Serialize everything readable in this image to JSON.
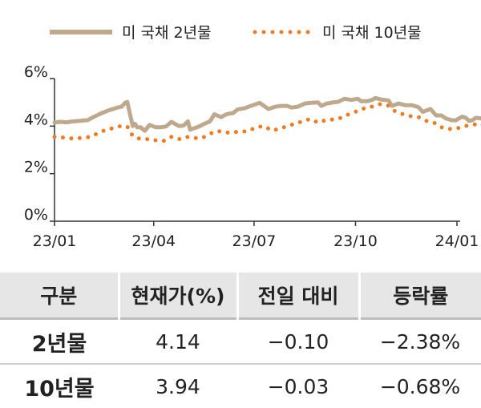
{
  "chart_data": {
    "type": "line",
    "series": [
      {
        "name": "미 국채 2년물",
        "color": "#bfa98d",
        "style": "solid",
        "points": [
          [
            "2023-01-01",
            4.15
          ],
          [
            "2023-01-06",
            4.18
          ],
          [
            "2023-01-12",
            4.16
          ],
          [
            "2023-01-18",
            4.2
          ],
          [
            "2023-01-24",
            4.22
          ],
          [
            "2023-01-31",
            4.25
          ],
          [
            "2023-02-06",
            4.4
          ],
          [
            "2023-02-13",
            4.55
          ],
          [
            "2023-02-20",
            4.68
          ],
          [
            "2023-02-27",
            4.78
          ],
          [
            "2023-03-03",
            4.82
          ],
          [
            "2023-03-06",
            4.98
          ],
          [
            "2023-03-08",
            5.02
          ],
          [
            "2023-03-10",
            4.6
          ],
          [
            "2023-03-13",
            4.0
          ],
          [
            "2023-03-15",
            4.1
          ],
          [
            "2023-03-17",
            3.95
          ],
          [
            "2023-03-20",
            3.95
          ],
          [
            "2023-03-24",
            3.8
          ],
          [
            "2023-03-28",
            4.05
          ],
          [
            "2023-04-03",
            3.95
          ],
          [
            "2023-04-07",
            3.95
          ],
          [
            "2023-04-12",
            3.98
          ],
          [
            "2023-04-17",
            4.18
          ],
          [
            "2023-04-24",
            4.0
          ],
          [
            "2023-04-28",
            4.02
          ],
          [
            "2023-05-02",
            4.2
          ],
          [
            "2023-05-04",
            3.85
          ],
          [
            "2023-05-08",
            3.92
          ],
          [
            "2023-05-12",
            3.98
          ],
          [
            "2023-05-17",
            4.1
          ],
          [
            "2023-05-22",
            4.2
          ],
          [
            "2023-05-26",
            4.5
          ],
          [
            "2023-06-01",
            4.38
          ],
          [
            "2023-06-06",
            4.5
          ],
          [
            "2023-06-12",
            4.55
          ],
          [
            "2023-06-16",
            4.7
          ],
          [
            "2023-06-22",
            4.75
          ],
          [
            "2023-06-30",
            4.88
          ],
          [
            "2023-07-06",
            4.98
          ],
          [
            "2023-07-10",
            4.85
          ],
          [
            "2023-07-14",
            4.72
          ],
          [
            "2023-07-19",
            4.8
          ],
          [
            "2023-07-25",
            4.85
          ],
          [
            "2023-07-31",
            4.85
          ],
          [
            "2023-08-04",
            4.78
          ],
          [
            "2023-08-10",
            4.82
          ],
          [
            "2023-08-16",
            4.95
          ],
          [
            "2023-08-22",
            4.98
          ],
          [
            "2023-08-28",
            5.0
          ],
          [
            "2023-08-31",
            4.85
          ],
          [
            "2023-09-05",
            4.95
          ],
          [
            "2023-09-11",
            5.0
          ],
          [
            "2023-09-15",
            5.02
          ],
          [
            "2023-09-21",
            5.15
          ],
          [
            "2023-09-27",
            5.1
          ],
          [
            "2023-10-03",
            5.15
          ],
          [
            "2023-10-06",
            5.05
          ],
          [
            "2023-10-12",
            5.05
          ],
          [
            "2023-10-16",
            5.1
          ],
          [
            "2023-10-19",
            5.18
          ],
          [
            "2023-10-24",
            5.12
          ],
          [
            "2023-10-31",
            5.08
          ],
          [
            "2023-11-03",
            4.85
          ],
          [
            "2023-11-09",
            4.95
          ],
          [
            "2023-11-15",
            4.88
          ],
          [
            "2023-11-21",
            4.88
          ],
          [
            "2023-11-27",
            4.8
          ],
          [
            "2023-12-01",
            4.6
          ],
          [
            "2023-12-08",
            4.72
          ],
          [
            "2023-12-13",
            4.45
          ],
          [
            "2023-12-18",
            4.45
          ],
          [
            "2023-12-22",
            4.32
          ],
          [
            "2023-12-27",
            4.25
          ],
          [
            "2023-12-31",
            4.24
          ],
          [
            "2024-01-03",
            4.33
          ],
          [
            "2024-01-06",
            4.4
          ],
          [
            "2024-01-09",
            4.35
          ],
          [
            "2024-01-12",
            4.22
          ],
          [
            "2024-01-15",
            4.25
          ],
          [
            "2024-01-18",
            4.35
          ],
          [
            "2024-01-22",
            4.33
          ],
          [
            "2024-01-26",
            4.28
          ],
          [
            "2024-01-30",
            4.15
          ]
        ]
      },
      {
        "name": "미 국채 10년물",
        "color": "#ef7c23",
        "style": "dotted",
        "points": [
          [
            "2023-01-01",
            3.55
          ],
          [
            "2023-01-09",
            3.52
          ],
          [
            "2023-01-17",
            3.48
          ],
          [
            "2023-01-25",
            3.5
          ],
          [
            "2023-02-03",
            3.55
          ],
          [
            "2023-02-10",
            3.72
          ],
          [
            "2023-02-17",
            3.85
          ],
          [
            "2023-02-24",
            3.92
          ],
          [
            "2023-03-02",
            4.0
          ],
          [
            "2023-03-08",
            3.98
          ],
          [
            "2023-03-13",
            3.58
          ],
          [
            "2023-03-20",
            3.45
          ],
          [
            "2023-03-27",
            3.45
          ],
          [
            "2023-04-03",
            3.4
          ],
          [
            "2023-04-10",
            3.38
          ],
          [
            "2023-04-17",
            3.55
          ],
          [
            "2023-04-24",
            3.45
          ],
          [
            "2023-05-01",
            3.55
          ],
          [
            "2023-05-08",
            3.5
          ],
          [
            "2023-05-15",
            3.5
          ],
          [
            "2023-05-22",
            3.68
          ],
          [
            "2023-05-29",
            3.8
          ],
          [
            "2023-06-05",
            3.72
          ],
          [
            "2023-06-12",
            3.75
          ],
          [
            "2023-06-19",
            3.76
          ],
          [
            "2023-06-26",
            3.8
          ],
          [
            "2023-07-03",
            3.95
          ],
          [
            "2023-07-10",
            4.0
          ],
          [
            "2023-07-17",
            3.82
          ],
          [
            "2023-07-24",
            3.88
          ],
          [
            "2023-07-31",
            4.0
          ],
          [
            "2023-08-07",
            4.1
          ],
          [
            "2023-08-14",
            4.2
          ],
          [
            "2023-08-21",
            4.3
          ],
          [
            "2023-08-28",
            4.15
          ],
          [
            "2023-09-04",
            4.25
          ],
          [
            "2023-09-11",
            4.28
          ],
          [
            "2023-09-18",
            4.35
          ],
          [
            "2023-09-25",
            4.5
          ],
          [
            "2023-10-02",
            4.62
          ],
          [
            "2023-10-09",
            4.75
          ],
          [
            "2023-10-16",
            4.82
          ],
          [
            "2023-10-23",
            4.92
          ],
          [
            "2023-10-30",
            4.88
          ],
          [
            "2023-11-06",
            4.62
          ],
          [
            "2023-11-13",
            4.5
          ],
          [
            "2023-11-20",
            4.42
          ],
          [
            "2023-11-27",
            4.38
          ],
          [
            "2023-12-04",
            4.22
          ],
          [
            "2023-12-11",
            4.15
          ],
          [
            "2023-12-18",
            3.95
          ],
          [
            "2023-12-25",
            3.88
          ],
          [
            "2024-01-01",
            3.9
          ],
          [
            "2024-01-08",
            4.0
          ],
          [
            "2024-01-15",
            4.05
          ],
          [
            "2024-01-22",
            4.12
          ],
          [
            "2024-01-29",
            3.94
          ]
        ]
      }
    ],
    "x_ticks": [
      "23/01",
      "23/04",
      "23/07",
      "23/10",
      "24/01"
    ],
    "x_tick_dates": [
      "2023-01-01",
      "2023-04-01",
      "2023-07-01",
      "2023-10-01",
      "2024-01-01"
    ],
    "x_range": [
      "2023-01-01",
      "2024-01-31"
    ],
    "y_ticks": [
      "0%",
      "2%",
      "4%",
      "6%"
    ],
    "y_tick_values": [
      0,
      2,
      4,
      6
    ],
    "ylim": [
      0,
      6
    ],
    "grid": false,
    "legend_position": "top"
  },
  "table": {
    "headers": [
      "구분",
      "현재가(%)",
      "전일 대비",
      "등락률"
    ],
    "rows": [
      {
        "label": "2년물",
        "price": "4.14",
        "change": "−0.10",
        "rate": "−2.38%"
      },
      {
        "label": "10년물",
        "price": "3.94",
        "change": "−0.03",
        "rate": "−0.68%"
      }
    ]
  }
}
